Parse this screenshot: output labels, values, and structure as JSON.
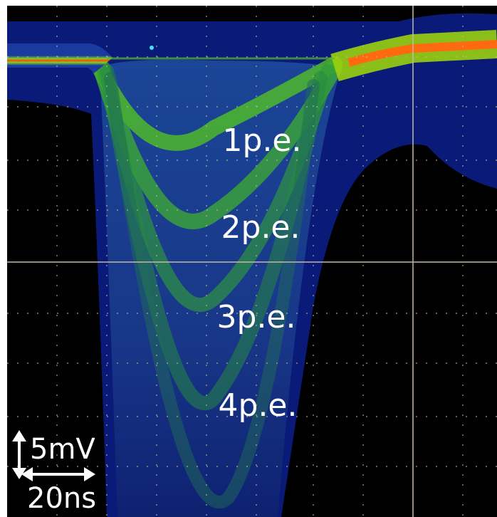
{
  "labels": [
    "1p.e.",
    "2p.e.",
    "3p.e.",
    "4p.e."
  ],
  "scale": {
    "voltage": "5mV",
    "time": "20ns"
  }
}
